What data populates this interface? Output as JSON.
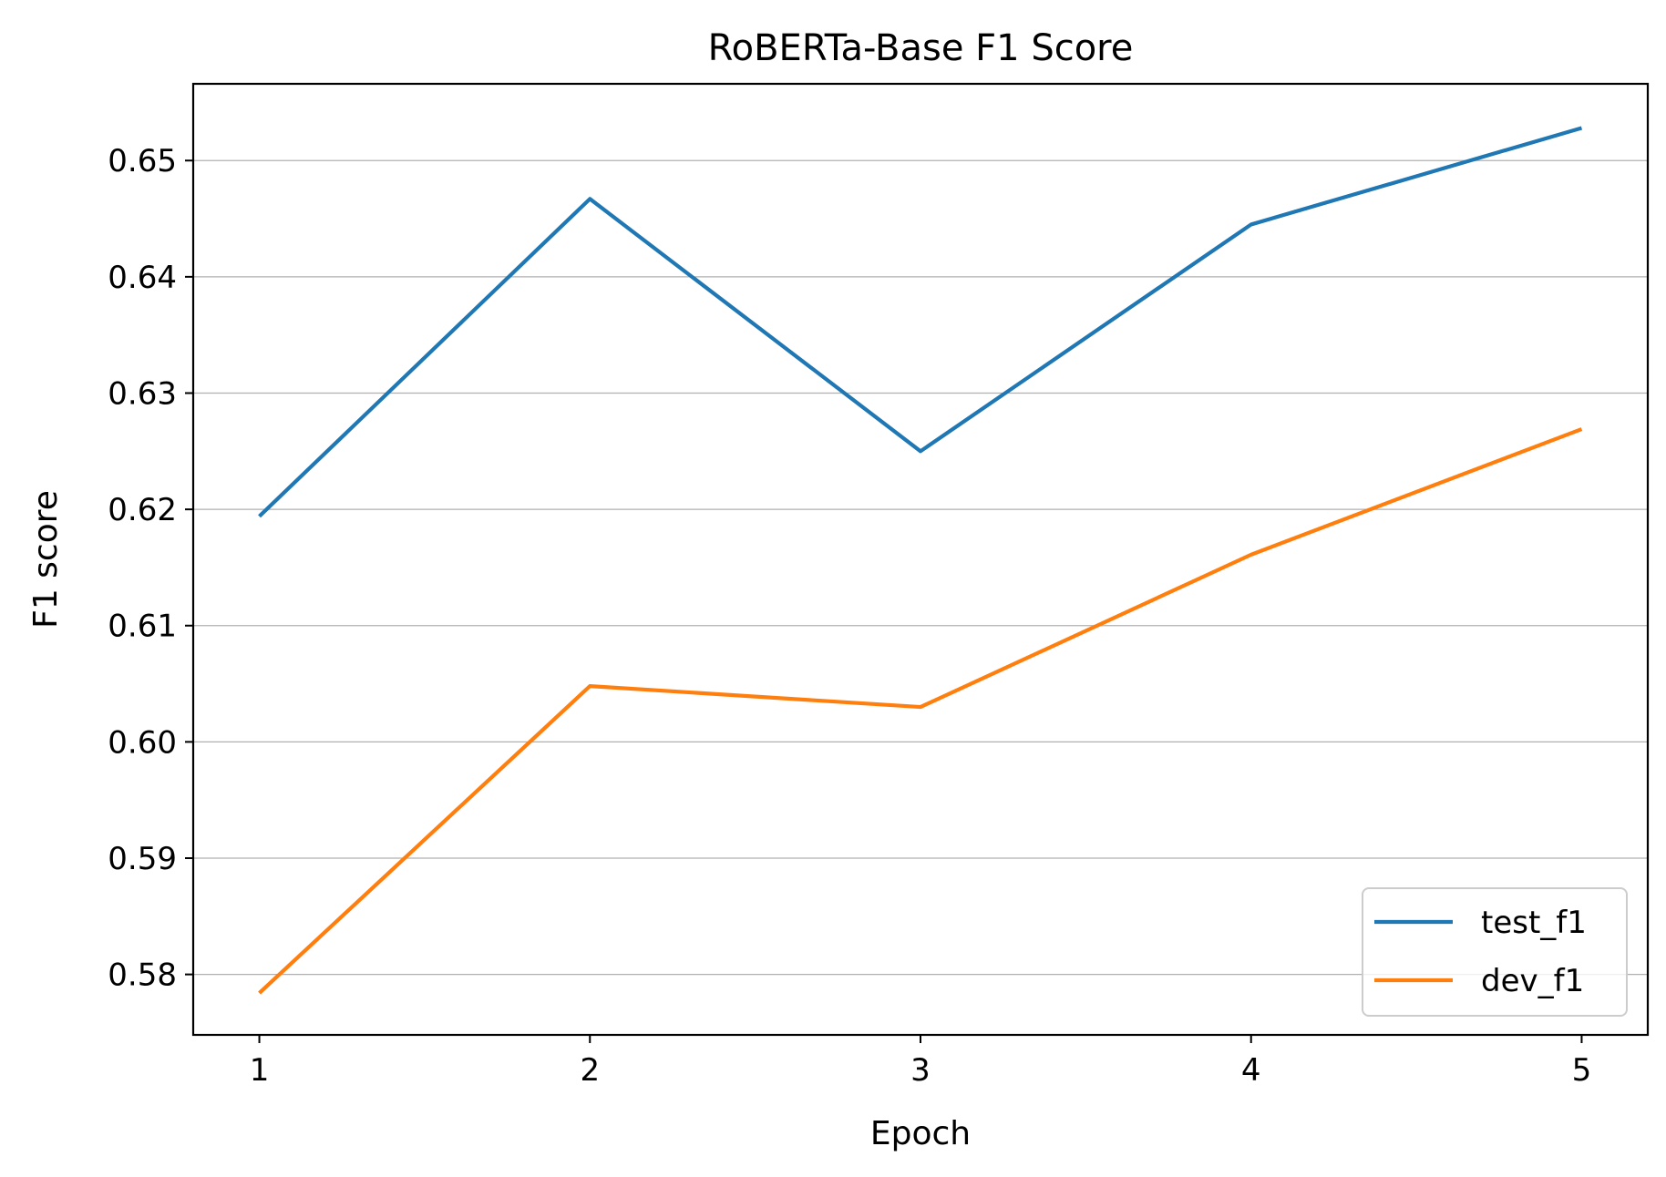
{
  "chart_data": {
    "type": "line",
    "title": "RoBERTa-Base F1 Score",
    "xlabel": "Epoch",
    "ylabel": "F1 score",
    "x": [
      1,
      2,
      3,
      4,
      5
    ],
    "xticks": [
      "1",
      "2",
      "3",
      "4",
      "5"
    ],
    "yticks": [
      "0.58",
      "0.59",
      "0.60",
      "0.61",
      "0.62",
      "0.63",
      "0.64",
      "0.65"
    ],
    "ytick_values": [
      0.58,
      0.59,
      0.6,
      0.61,
      0.62,
      0.63,
      0.64,
      0.65
    ],
    "xlim": [
      0.8,
      5.2
    ],
    "ylim": [
      0.5748,
      0.6566
    ],
    "grid": "horizontal",
    "legend_position": "lower right",
    "series": [
      {
        "name": "test_f1",
        "color": "#1f77b4",
        "values": [
          0.6194,
          0.6467,
          0.625,
          0.6445,
          0.6528
        ]
      },
      {
        "name": "dev_f1",
        "color": "#ff7f0e",
        "values": [
          0.5784,
          0.6048,
          0.603,
          0.6161,
          0.6269
        ]
      }
    ]
  }
}
